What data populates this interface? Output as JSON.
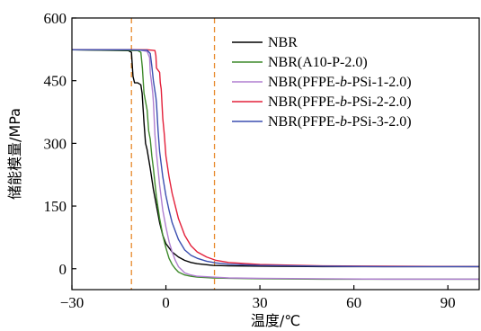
{
  "chart_data": {
    "type": "line",
    "xlabel": "温度/℃",
    "ylabel": "储能模量/MPa",
    "xlim": [
      -30,
      100
    ],
    "ylim": [
      -50,
      600
    ],
    "xticks": [
      -30,
      0,
      30,
      60,
      90
    ],
    "yticks": [
      0,
      150,
      300,
      450,
      600
    ],
    "xtick_labels": [
      "−30",
      "0",
      "30",
      "60",
      "90"
    ],
    "ytick_labels": [
      "0",
      "150",
      "300",
      "450",
      "600"
    ],
    "grid": false,
    "legend_position": "top-right",
    "reference_lines": [
      {
        "axis": "x",
        "value": -11,
        "style": "dashed",
        "color": "#e8892b"
      },
      {
        "axis": "x",
        "value": 15.5,
        "style": "dashed",
        "color": "#e8892b"
      }
    ],
    "series": [
      {
        "name": "NBR",
        "legend_parts": [
          {
            "text": "NBR"
          }
        ],
        "color": "#000000",
        "x": [
          -30,
          -12,
          -11,
          -10.5,
          -10,
          -9,
          -8,
          -7.6,
          -7,
          -6.5,
          -6,
          -5,
          -4,
          -3,
          -2,
          -1,
          0,
          2,
          4,
          6,
          8,
          10,
          15,
          20,
          30,
          50,
          70,
          100
        ],
        "y": [
          524,
          522,
          518,
          460,
          445,
          445,
          440,
          420,
          350,
          300,
          285,
          240,
          190,
          150,
          110,
          80,
          60,
          40,
          28,
          20,
          15,
          12,
          8,
          7,
          6,
          5,
          5,
          5
        ]
      },
      {
        "name": "NBR(A10-P-2.0)",
        "legend_parts": [
          {
            "text": "NBR(A10-P-2.0)"
          }
        ],
        "color": "#3f8a2c",
        "x": [
          -30,
          -12,
          -11,
          -9,
          -8,
          -7.5,
          -7,
          -6,
          -5.5,
          -5,
          -4.5,
          -4,
          -3,
          -2,
          -1,
          0,
          1,
          2,
          3,
          4,
          6,
          8,
          10,
          15,
          20,
          30,
          50,
          70,
          100
        ],
        "y": [
          524,
          523,
          522,
          522,
          518,
          480,
          420,
          380,
          330,
          310,
          270,
          240,
          170,
          120,
          80,
          50,
          25,
          10,
          0,
          -8,
          -15,
          -18,
          -20,
          -22,
          -23,
          -24,
          -25,
          -25,
          -25
        ]
      },
      {
        "name": "NBR(PFPE-b-PSi-1-2.0)",
        "legend_parts": [
          {
            "text": "NBR(PFPE-"
          },
          {
            "text": "b",
            "italic": true
          },
          {
            "text": "-PSi-1-2.0)"
          }
        ],
        "color": "#b07fd0",
        "x": [
          -30,
          -12,
          -8,
          -6,
          -5.2,
          -5,
          -4.5,
          -4.2,
          -4,
          -3.5,
          -3,
          -2,
          -1,
          0,
          1,
          2,
          3,
          4,
          6,
          8,
          10,
          15,
          20,
          30,
          50,
          70,
          100
        ],
        "y": [
          524,
          524,
          523,
          520,
          505,
          470,
          440,
          420,
          400,
          320,
          275,
          200,
          140,
          100,
          65,
          40,
          20,
          5,
          -10,
          -15,
          -18,
          -20,
          -22,
          -23,
          -24,
          -25,
          -25
        ]
      },
      {
        "name": "NBR(PFPE-b-PSi-2-2.0)",
        "legend_parts": [
          {
            "text": "NBR(PFPE-"
          },
          {
            "text": "b",
            "italic": true
          },
          {
            "text": "-PSi-2-2.0)"
          }
        ],
        "color": "#e3203a",
        "x": [
          -30,
          -12,
          -6,
          -3.5,
          -3.2,
          -3,
          -2.5,
          -2,
          -1.8,
          -1.5,
          -1,
          -0.5,
          0,
          1,
          2,
          3,
          4,
          6,
          8,
          10,
          13,
          16,
          20,
          30,
          50,
          70,
          100
        ],
        "y": [
          524,
          524,
          524,
          522,
          510,
          480,
          475,
          470,
          445,
          430,
          360,
          320,
          270,
          220,
          180,
          150,
          120,
          80,
          55,
          40,
          28,
          20,
          15,
          10,
          7,
          6,
          5
        ]
      },
      {
        "name": "NBR(PFPE-b-PSi-3-2.0)",
        "legend_parts": [
          {
            "text": "NBR(PFPE-"
          },
          {
            "text": "b",
            "italic": true
          },
          {
            "text": "-PSi-3-2.0)"
          }
        ],
        "color": "#3b4fb0",
        "x": [
          -30,
          -12,
          -6,
          -5,
          -4.5,
          -4,
          -3.6,
          -3.2,
          -3,
          -2.5,
          -2,
          -1,
          0,
          1,
          2,
          3,
          4,
          6,
          8,
          10,
          13,
          16,
          20,
          30,
          50,
          70,
          100
        ],
        "y": [
          524,
          524,
          523,
          515,
          485,
          450,
          430,
          410,
          395,
          330,
          280,
          220,
          175,
          140,
          110,
          90,
          70,
          45,
          32,
          25,
          18,
          14,
          11,
          8,
          6,
          5,
          5
        ]
      }
    ]
  }
}
